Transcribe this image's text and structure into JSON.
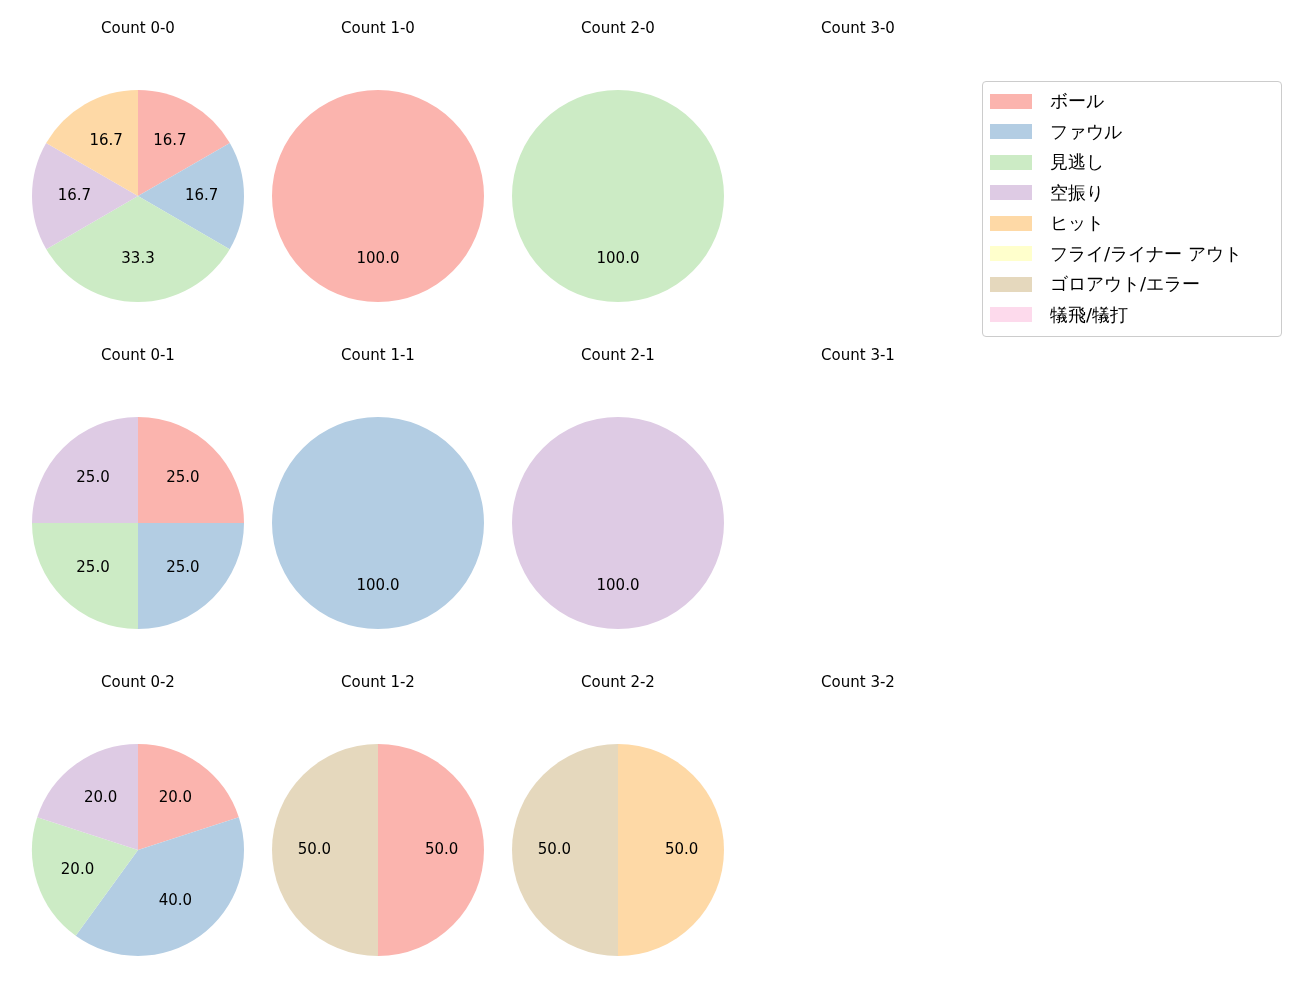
{
  "chart_data": [
    {
      "type": "pie",
      "title": "Count 0-0",
      "legend": "right",
      "categories": [
        "ボール",
        "ファウル",
        "見逃し",
        "空振り",
        "ヒット",
        "フライ/ライナー アウト",
        "ゴロアウト/エラー",
        "犠飛/犠打"
      ],
      "colors": [
        "#fbb4ae",
        "#b3cde3",
        "#ccebc5",
        "#decbe4",
        "#fed9a6",
        "#ffffcc",
        "#e5d8bd",
        "#fddaec"
      ],
      "values": [
        16.7,
        16.7,
        33.3,
        16.7,
        16.7,
        0,
        0,
        0
      ],
      "value_labels": [
        "16.7",
        "16.7",
        "33.3",
        "16.7",
        "16.7",
        null,
        null,
        null
      ]
    },
    {
      "type": "pie",
      "title": "Count 1-0",
      "categories": [
        null,
        null,
        null,
        null,
        null,
        null,
        null,
        null
      ],
      "colors": [
        "#fbb4ae",
        "#b3cde3",
        "#ccebc5",
        "#decbe4",
        "#fed9a6",
        "#ffffcc",
        "#e5d8bd",
        "#fddaec"
      ],
      "values": [
        100,
        0,
        0,
        0,
        0,
        0,
        0,
        0
      ],
      "value_labels": [
        "100.0",
        null,
        null,
        null,
        null,
        null,
        null,
        null
      ]
    },
    {
      "type": "pie",
      "title": "Count 2-0",
      "categories": [
        null,
        null,
        null,
        null,
        null,
        null,
        null,
        null
      ],
      "colors": [
        "#fbb4ae",
        "#b3cde3",
        "#ccebc5",
        "#decbe4",
        "#fed9a6",
        "#ffffcc",
        "#e5d8bd",
        "#fddaec"
      ],
      "values": [
        0,
        0,
        100,
        0,
        0,
        0,
        0,
        0
      ],
      "value_labels": [
        null,
        null,
        "100.0",
        null,
        null,
        null,
        null,
        null
      ]
    },
    {
      "type": "pie",
      "title": "Count 3-0"
    },
    {
      "type": "pie",
      "title": "Count 0-1",
      "categories": [
        null,
        null,
        null,
        null,
        null,
        null,
        null,
        null
      ],
      "colors": [
        "#fbb4ae",
        "#b3cde3",
        "#ccebc5",
        "#decbe4",
        "#fed9a6",
        "#ffffcc",
        "#e5d8bd",
        "#fddaec"
      ],
      "values": [
        25,
        25,
        25,
        25,
        0,
        0,
        0,
        0
      ],
      "value_labels": [
        "25.0",
        "25.0",
        "25.0",
        "25.0",
        null,
        null,
        null,
        null
      ]
    },
    {
      "type": "pie",
      "title": "Count 1-1",
      "categories": [
        null,
        null,
        null,
        null,
        null,
        null,
        null,
        null
      ],
      "colors": [
        "#fbb4ae",
        "#b3cde3",
        "#ccebc5",
        "#decbe4",
        "#fed9a6",
        "#ffffcc",
        "#e5d8bd",
        "#fddaec"
      ],
      "values": [
        0,
        100,
        0,
        0,
        0,
        0,
        0,
        0
      ],
      "value_labels": [
        null,
        "100.0",
        null,
        null,
        null,
        null,
        null,
        null
      ]
    },
    {
      "type": "pie",
      "title": "Count 2-1",
      "categories": [
        null,
        null,
        null,
        null,
        null,
        null,
        null,
        null
      ],
      "colors": [
        "#fbb4ae",
        "#b3cde3",
        "#ccebc5",
        "#decbe4",
        "#fed9a6",
        "#ffffcc",
        "#e5d8bd",
        "#fddaec"
      ],
      "values": [
        0,
        0,
        0,
        100,
        0,
        0,
        0,
        0
      ],
      "value_labels": [
        null,
        null,
        null,
        "100.0",
        null,
        null,
        null,
        null
      ]
    },
    {
      "type": "pie",
      "title": "Count 3-1"
    },
    {
      "type": "pie",
      "title": "Count 0-2",
      "categories": [
        null,
        null,
        null,
        null,
        null,
        null,
        null,
        null
      ],
      "colors": [
        "#fbb4ae",
        "#b3cde3",
        "#ccebc5",
        "#decbe4",
        "#fed9a6",
        "#ffffcc",
        "#e5d8bd",
        "#fddaec"
      ],
      "values": [
        20,
        40,
        20,
        20,
        0,
        0,
        0,
        0
      ],
      "value_labels": [
        "20.0",
        "40.0",
        "20.0",
        "20.0",
        null,
        null,
        null,
        null
      ]
    },
    {
      "type": "pie",
      "title": "Count 1-2",
      "categories": [
        null,
        null,
        null,
        null,
        null,
        null,
        null,
        null
      ],
      "colors": [
        "#fbb4ae",
        "#b3cde3",
        "#ccebc5",
        "#decbe4",
        "#fed9a6",
        "#ffffcc",
        "#e5d8bd",
        "#fddaec"
      ],
      "values": [
        50,
        0,
        0,
        0,
        0,
        0,
        50,
        0
      ],
      "value_labels": [
        "50.0",
        null,
        null,
        null,
        null,
        null,
        "50.0",
        null
      ]
    },
    {
      "type": "pie",
      "title": "Count 2-2",
      "categories": [
        null,
        null,
        null,
        null,
        null,
        null,
        null,
        null
      ],
      "colors": [
        "#fbb4ae",
        "#b3cde3",
        "#ccebc5",
        "#decbe4",
        "#fed9a6",
        "#ffffcc",
        "#e5d8bd",
        "#fddaec"
      ],
      "values": [
        0,
        0,
        0,
        0,
        50,
        0,
        50,
        0
      ],
      "value_labels": [
        null,
        null,
        null,
        null,
        "50.0",
        null,
        "50.0",
        null
      ]
    },
    {
      "type": "pie",
      "title": "Count 3-2"
    }
  ]
}
